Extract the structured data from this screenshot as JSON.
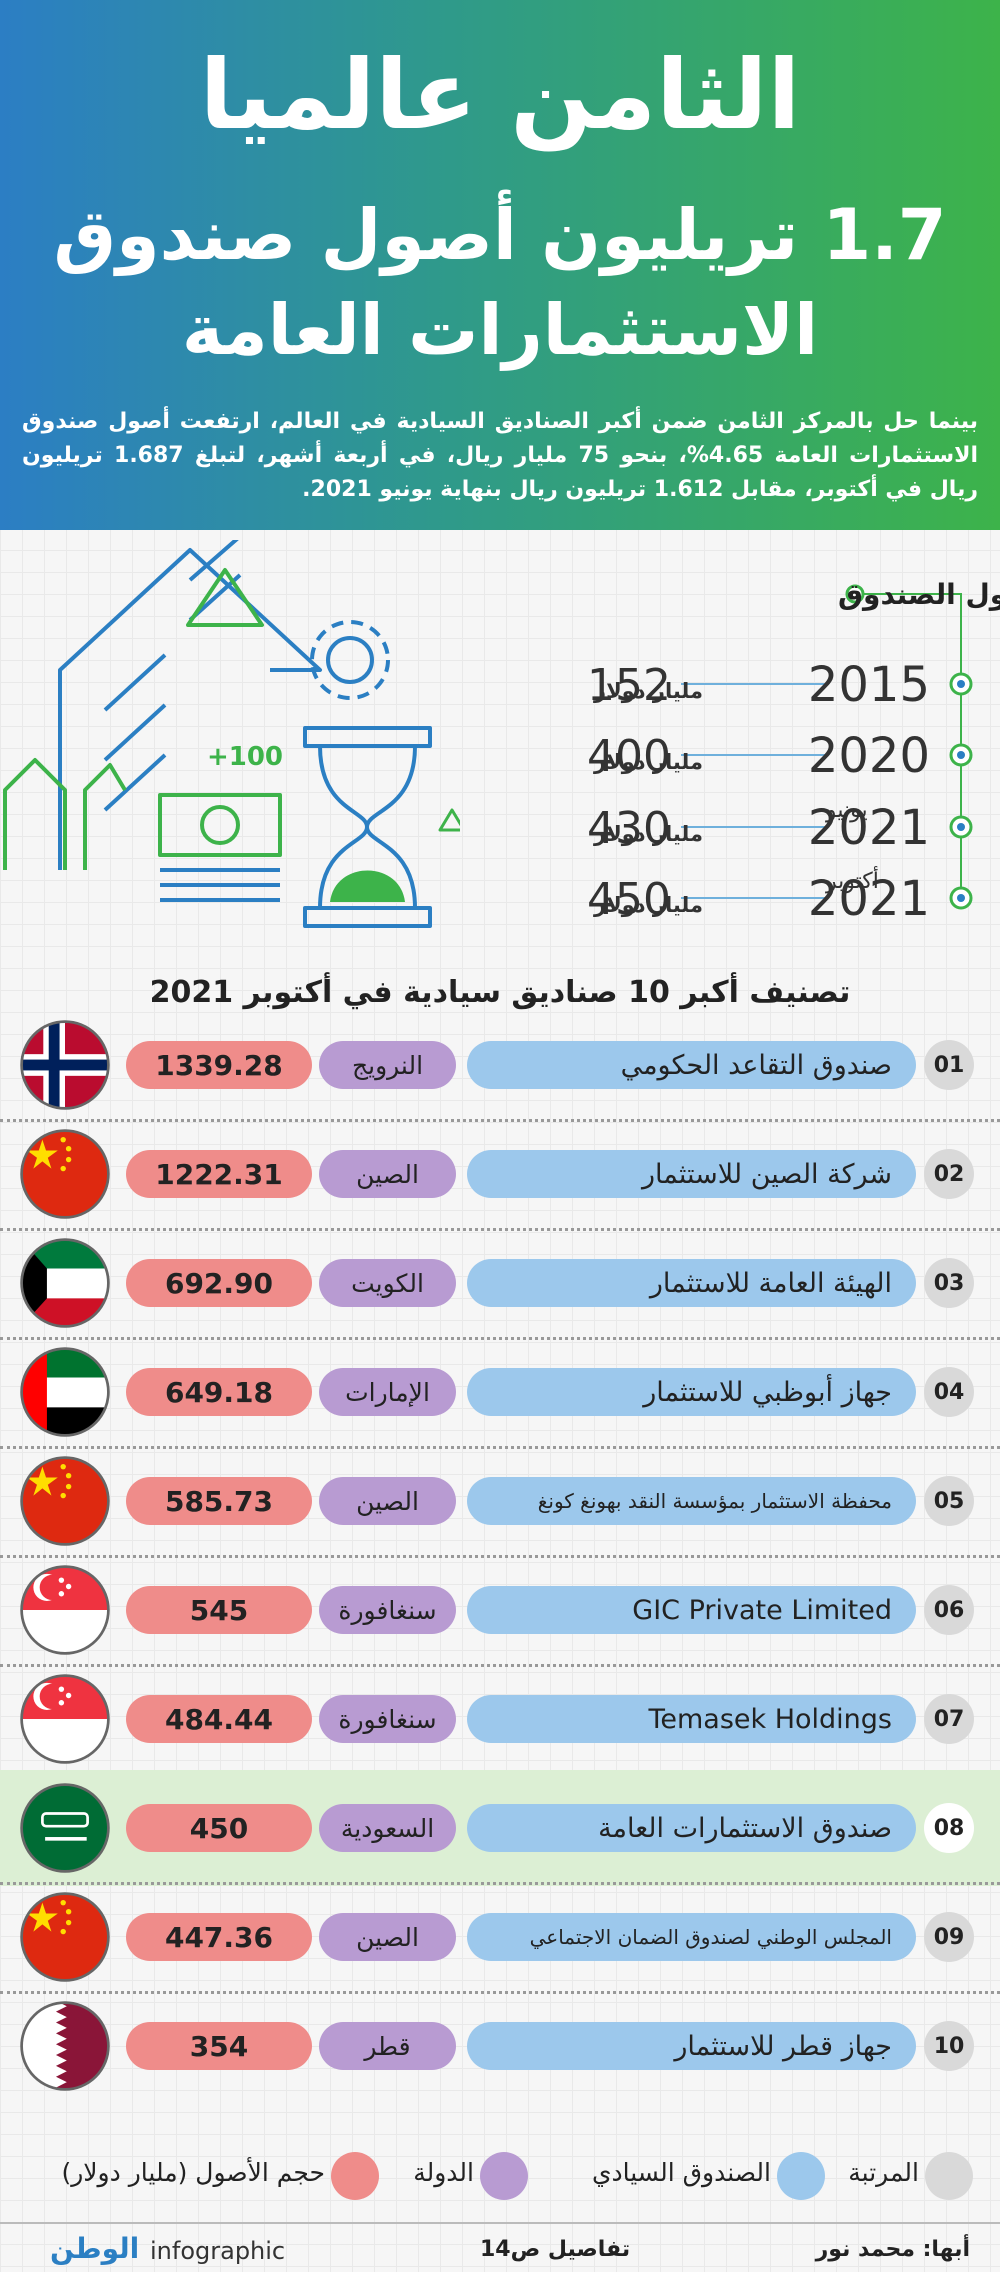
{
  "header": {
    "title": "الثامن عالميا",
    "headline_line1": "1.7 تريليون أصول صندوق",
    "headline_line2": "الاستثمارات العامة",
    "intro": "بينما حل بالمركز الثامن ضمن أكبر الصناديق السيادية في العالم، ارتفعت أصول صندوق الاستثمارات العامة 4.65%، بنحو 75 مليار ريال، في أربعة أشهر، لتبلغ 1.687 تريليون ريال في أكتوبر، مقابل 1.612 تريليون ريال بنهاية يونيو 2021."
  },
  "illustration": {
    "badge": "+100"
  },
  "timeline": {
    "title": "تطور أصول الصندوق",
    "entries": [
      {
        "year": "2015",
        "amount": "152",
        "unit": "مليار دولار"
      },
      {
        "year": "2020",
        "amount": "400",
        "unit": "مليار دولار"
      },
      {
        "year": "2021",
        "month": "يونيو",
        "amount": "430",
        "unit": "مليار دولار"
      },
      {
        "year": "2021",
        "month": "أكتوبر",
        "amount": "450",
        "unit": "مليار دولار"
      }
    ]
  },
  "ranking": {
    "title": "تصنيف أكبر 10 صناديق سيادية في أكتوبر 2021",
    "rows": [
      {
        "rank": "01",
        "fund": "صندوق التقاعد الحكومي",
        "country": "النرويج",
        "assets": "1339.28",
        "flag": "no"
      },
      {
        "rank": "02",
        "fund": "شركة الصين للاستثمار",
        "country": "الصين",
        "assets": "1222.31",
        "flag": "cn"
      },
      {
        "rank": "03",
        "fund": "الهيئة العامة للاستثمار",
        "country": "الكويت",
        "assets": "692.90",
        "flag": "kw"
      },
      {
        "rank": "04",
        "fund": "جهاز أبوظبي للاستثمار",
        "country": "الإمارات",
        "assets": "649.18",
        "flag": "ae"
      },
      {
        "rank": "05",
        "fund": "محفظة الاستثمار بمؤسسة النقد بهونغ كونغ",
        "country": "الصين",
        "assets": "585.73",
        "flag": "cn"
      },
      {
        "rank": "06",
        "fund": "GIC Private Limited",
        "country": "سنغافورة",
        "assets": "545",
        "flag": "sg"
      },
      {
        "rank": "07",
        "fund": "Temasek Holdings",
        "country": "سنغافورة",
        "assets": "484.44",
        "flag": "sg"
      },
      {
        "rank": "08",
        "fund": "صندوق الاستثمارات العامة",
        "country": "السعودية",
        "assets": "450",
        "flag": "sa",
        "highlight": true
      },
      {
        "rank": "09",
        "fund": "المجلس الوطني لصندوق الضمان الاجتماعي",
        "country": "الصين",
        "assets": "447.36",
        "flag": "cn"
      },
      {
        "rank": "10",
        "fund": "جهاز قطر للاستثمار",
        "country": "قطر",
        "assets": "354",
        "flag": "qa"
      }
    ]
  },
  "legend": {
    "rank": "المرتبة",
    "fund": "الصندوق السيادي",
    "country": "الدولة",
    "assets": "حجم الأصول (مليار دولار)"
  },
  "footer": {
    "brand": "الوطن",
    "brand_sub": "infographic",
    "details": "تفاصيل ص14",
    "credit": "أبها: محمد نور"
  }
}
